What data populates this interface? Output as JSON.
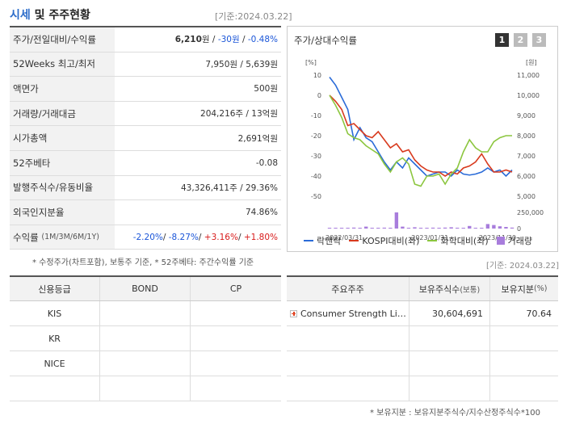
{
  "header": {
    "title_accent": "시세",
    "title_rest": "및 주주현황",
    "base_date": "[기준:2024.03.22]"
  },
  "price_table": {
    "rows": [
      {
        "label": "주가/전일대비/수익률",
        "price": "6,210",
        "unit": "원",
        "sep1": " / ",
        "change": "-30원",
        "sep2": " / ",
        "rate": "-0.48%"
      },
      {
        "label": "52Weeks 최고/최저",
        "value": "7,950원 / 5,639원"
      },
      {
        "label": "액면가",
        "value": "500원"
      },
      {
        "label": "거래량/거래대금",
        "value": "204,216주 / 13억원"
      },
      {
        "label": "시가총액",
        "value": "2,691억원"
      },
      {
        "label": "52주베타",
        "value": "-0.08"
      },
      {
        "label": "발행주식수/유동비율",
        "value": "43,326,411주 / 29.36%"
      },
      {
        "label": "외국인지분율",
        "value": "74.86%"
      },
      {
        "label": "수익률",
        "sublabel": "(1M/3M/6M/1Y)",
        "r1": "-2.20%",
        "r2": "-8.27%",
        "r3": "+3.16%",
        "r4": "+1.80%",
        "sep": "/ "
      }
    ],
    "note": "* 수정주가(차트포함), 보통주 기준, * 52주베타: 주간수익률 기준"
  },
  "chart_panel": {
    "title": "주가/상대수익률",
    "tabs": [
      "1",
      "2",
      "3"
    ],
    "active_tab": 0,
    "base_date": "[기준: 2024.03.22]",
    "legend": [
      {
        "name": "락앤락",
        "color": "#2a6bd8"
      },
      {
        "name": "KOSPI대비(좌)",
        "color": "#d83a1e"
      },
      {
        "name": "화학대비(좌)",
        "color": "#8cc63f"
      },
      {
        "name": "거래량",
        "color": "#a87ddc"
      }
    ]
  },
  "chart_data": {
    "type": "line",
    "left_axis_unit": "[%]",
    "right_axis_unit": "[원]",
    "left_ticks": [
      "10",
      "0",
      "-10",
      "-20",
      "-30",
      "-40",
      "-50"
    ],
    "right_ticks": [
      "11,000",
      "10,000",
      "9,000",
      "8,000",
      "7,000",
      "6,000",
      "5,000"
    ],
    "volume_ticks": [
      "250,000",
      "0"
    ],
    "x_labels": [
      "2022/03/31",
      "2023/01/31",
      "2023/11/30"
    ],
    "ylim_left": [
      -50,
      10
    ],
    "ylim_right": [
      5000,
      11000
    ],
    "series": [
      {
        "name": "락앤락",
        "axis": "right",
        "values": [
          10900,
          10500,
          9900,
          9300,
          7800,
          8400,
          7900,
          7700,
          7200,
          6700,
          6300,
          6700,
          6400,
          6900,
          6600,
          6300,
          6000,
          6100,
          6200,
          6200,
          6000,
          6300,
          6100,
          6050,
          6100,
          6200,
          6400,
          6200,
          6300,
          6000,
          6300
        ]
      },
      {
        "name": "KOSPI대비(좌)",
        "values": [
          0,
          -3,
          -7,
          -15,
          -14,
          -17,
          -20,
          -21,
          -18,
          -22,
          -26,
          -24,
          -28,
          -27,
          -32,
          -35,
          -37,
          -38,
          -38,
          -40,
          -38,
          -39,
          -36,
          -35,
          -33,
          -29,
          -34,
          -38,
          -38,
          -37,
          -38
        ]
      },
      {
        "name": "화학대비(좌)",
        "values": [
          0,
          -5,
          -11,
          -19,
          -21,
          -22,
          -25,
          -27,
          -29,
          -34,
          -38,
          -33,
          -31,
          -34,
          -44,
          -45,
          -40,
          -40,
          -39,
          -44,
          -39,
          -36,
          -28,
          -22,
          -26,
          -28,
          -28,
          -23,
          -21,
          -20,
          -20
        ]
      }
    ],
    "volume": [
      8000,
      12000,
      9000,
      10000,
      15000,
      9000,
      30000,
      10000,
      9000,
      14000,
      8000,
      250000,
      30000,
      12000,
      20000,
      9000,
      10000,
      14000,
      12000,
      15000,
      20000,
      13000,
      11000,
      40000,
      12000,
      10000,
      70000,
      55000,
      35000,
      25000,
      15000
    ]
  },
  "credit_table": {
    "headers": [
      "신용등급",
      "BOND",
      "CP"
    ],
    "rows": [
      [
        "KIS",
        "",
        ""
      ],
      [
        "KR",
        "",
        ""
      ],
      [
        "NICE",
        "",
        ""
      ],
      [
        "",
        "",
        ""
      ]
    ]
  },
  "shareholder_table": {
    "headers": [
      "주요주주",
      "보유주식수",
      "(보통)",
      "보유지분",
      "(%)"
    ],
    "rows": [
      {
        "name": "Consumer Strength Li…",
        "shares": "30,604,691",
        "pct": "70.64"
      },
      {
        "name": "",
        "shares": "",
        "pct": ""
      },
      {
        "name": "",
        "shares": "",
        "pct": ""
      },
      {
        "name": "",
        "shares": "",
        "pct": ""
      }
    ],
    "note": "* 보유지분 : 보유지분주식수/지수산정주식수*100"
  }
}
